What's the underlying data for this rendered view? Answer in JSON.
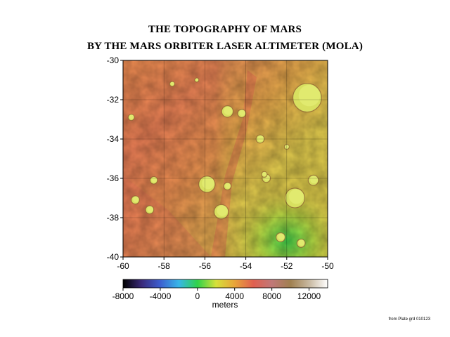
{
  "title_line1": "THE TOPOGRAPHY OF MARS",
  "title_line2": "BY THE MARS ORBITER LASER ALTIMETER (MOLA)",
  "map": {
    "lat_ticks": [
      -30,
      -32,
      -34,
      -36,
      -38,
      -40
    ],
    "lon_ticks": [
      -60,
      -58,
      -56,
      -54,
      -52,
      -50
    ],
    "lat_range": [
      -40,
      -30
    ],
    "lon_range": [
      -60,
      -50
    ],
    "grid": true
  },
  "colorbar": {
    "ticks": [
      -8000,
      -4000,
      0,
      4000,
      8000,
      12000
    ],
    "range": [
      -8000,
      14000
    ],
    "label": "meters",
    "colors": [
      "#000000",
      "#3a2a7a",
      "#3c5fd0",
      "#38b6e8",
      "#2fd24a",
      "#d6e03a",
      "#e8a43a",
      "#e06050",
      "#c07878",
      "#a08050",
      "#c8b8a0",
      "#ffffff"
    ]
  },
  "craters": [
    {
      "lon": -54.9,
      "lat": -32.6,
      "r": 0.28
    },
    {
      "lon": -54.2,
      "lat": -32.7,
      "r": 0.2
    },
    {
      "lon": -55.9,
      "lat": -36.3,
      "r": 0.4
    },
    {
      "lon": -54.9,
      "lat": -36.4,
      "r": 0.18
    },
    {
      "lon": -55.2,
      "lat": -37.7,
      "r": 0.35
    },
    {
      "lon": -51.6,
      "lat": -37.0,
      "r": 0.48
    },
    {
      "lon": -50.7,
      "lat": -36.1,
      "r": 0.25
    },
    {
      "lon": -51.0,
      "lat": -31.9,
      "r": 0.7
    },
    {
      "lon": -59.4,
      "lat": -37.1,
      "r": 0.2
    },
    {
      "lon": -58.5,
      "lat": -36.1,
      "r": 0.18
    },
    {
      "lon": -58.7,
      "lat": -37.6,
      "r": 0.2
    },
    {
      "lon": -59.6,
      "lat": -32.9,
      "r": 0.15
    },
    {
      "lon": -57.6,
      "lat": -31.2,
      "r": 0.12
    },
    {
      "lon": -53.3,
      "lat": -34.0,
      "r": 0.2
    },
    {
      "lon": -53.0,
      "lat": -36.0,
      "r": 0.2
    },
    {
      "lon": -52.3,
      "lat": -39.0,
      "r": 0.22
    },
    {
      "lon": -51.3,
      "lat": -39.3,
      "r": 0.2
    },
    {
      "lon": -52.0,
      "lat": -34.4,
      "r": 0.12
    },
    {
      "lon": -56.4,
      "lat": -31.0,
      "r": 0.1
    },
    {
      "lon": -53.1,
      "lat": -35.8,
      "r": 0.14
    }
  ],
  "footer": "from Plate grd 010123"
}
